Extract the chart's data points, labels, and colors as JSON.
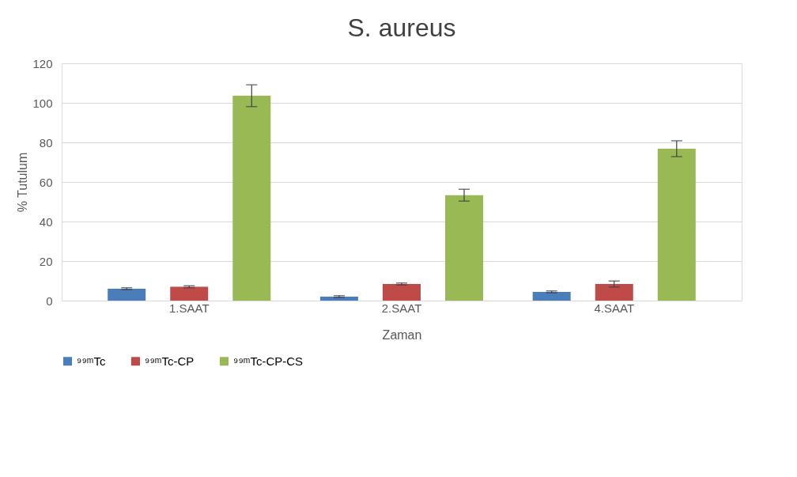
{
  "chart_data": {
    "type": "bar",
    "title": "S. aureus",
    "xlabel": "Zaman",
    "ylabel": "% Tutulum",
    "categories": [
      "1.SAAT",
      "2.SAAT",
      "4.SAAT"
    ],
    "series": [
      {
        "name": "⁹⁹ᵐTc",
        "color": "#4a7ebb",
        "values": [
          6,
          2,
          4.4
        ],
        "errors": [
          0.5,
          0.5,
          0.5
        ]
      },
      {
        "name": "⁹⁹ᵐTc-CP",
        "color": "#be4b48",
        "values": [
          7,
          8.4,
          8.4
        ],
        "errors": [
          0.5,
          0.5,
          1.5
        ]
      },
      {
        "name": "⁹⁹ᵐTc-CP-CS",
        "color": "#98b954",
        "values": [
          103.6,
          53.3,
          76.8
        ],
        "errors": [
          5.5,
          3,
          4
        ]
      }
    ],
    "ylim": [
      0,
      120
    ],
    "yticks": [
      0,
      20,
      40,
      60,
      80,
      100,
      120
    ],
    "grid": "y",
    "legend": "bottom"
  }
}
